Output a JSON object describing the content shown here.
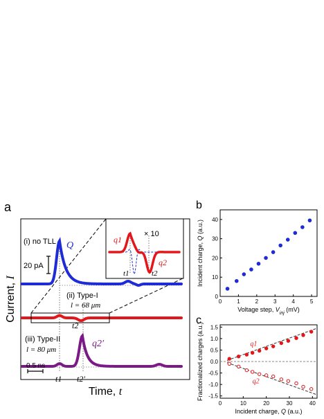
{
  "panel_a": {
    "panel_label": "a",
    "ylabel_text": "Current,",
    "ylabel_var": "I",
    "xlabel_text": "Time,",
    "xlabel_var": "t",
    "trace_i_label": "(i) no TLL",
    "trace_i_peak": "Q",
    "trace_ii_label": "(ii) Type-I",
    "trace_ii_len": "l = 68 μm",
    "trace_iii_label": "(iii) Type-II",
    "trace_iii_len": "l = 80 μm",
    "trace_iii_peak": "q2′",
    "scale_current": "20 pA",
    "scale_time": "0.5 ns",
    "t1": "t1",
    "t2": "t2",
    "t2p": "t2′",
    "colors": {
      "i": "#1f2bd6",
      "ii": "#e3161b",
      "iii": "#7b1a86"
    }
  },
  "inset": {
    "q1": "q1",
    "q2": "q2",
    "times10": "× 10",
    "t1": "t1",
    "t2": "t2"
  },
  "chart_data": [
    {
      "type": "scatter",
      "panel": "b",
      "panel_label": "b",
      "xlabel": "Voltage step, Vinj (mV)",
      "ylabel": "Incident charge, Q (a.u.)",
      "xlim": [
        0,
        5.3
      ],
      "ylim": [
        0,
        45
      ],
      "xticks": [
        0,
        1,
        2,
        3,
        4,
        5
      ],
      "yticks": [
        0,
        10,
        20,
        30,
        40
      ],
      "color": "#1f2bd6",
      "series": [
        {
          "x": [
            0.4,
            0.9,
            1.3,
            1.7,
            2.1,
            2.5,
            2.9,
            3.3,
            3.7,
            4.1,
            4.5,
            4.9
          ],
          "y": [
            4,
            8,
            11.5,
            14,
            17,
            20,
            23,
            26.5,
            29.5,
            33,
            36,
            39.5
          ]
        }
      ]
    },
    {
      "type": "scatter",
      "panel": "c",
      "panel_label": "c",
      "xlabel": "Incident charge, Q (a.u.)",
      "ylabel": "Fractionalized charges (a.u.)",
      "xlim": [
        0,
        42
      ],
      "ylim": [
        -1.6,
        1.6
      ],
      "xticks": [
        0,
        10,
        20,
        30,
        40
      ],
      "yticks": [
        -1.5,
        -1.0,
        -0.5,
        0.0,
        0.5,
        1.0,
        1.5
      ],
      "color": "#e3161b",
      "series": [
        {
          "name": "q1",
          "x": [
            4,
            8,
            11.5,
            14,
            17,
            20,
            23,
            26.5,
            29.5,
            33,
            36,
            39.5
          ],
          "y": [
            0.12,
            0.22,
            0.3,
            0.38,
            0.47,
            0.57,
            0.66,
            0.8,
            0.9,
            1.02,
            1.15,
            1.3
          ]
        },
        {
          "name": "q2",
          "x": [
            4,
            8,
            11.5,
            14,
            17,
            20,
            23,
            26.5,
            29.5,
            33,
            36,
            39.5
          ],
          "y": [
            -0.1,
            -0.22,
            -0.38,
            -0.45,
            -0.55,
            -0.6,
            -0.65,
            -0.78,
            -0.85,
            -0.95,
            -1.1,
            -1.2
          ]
        }
      ]
    }
  ]
}
